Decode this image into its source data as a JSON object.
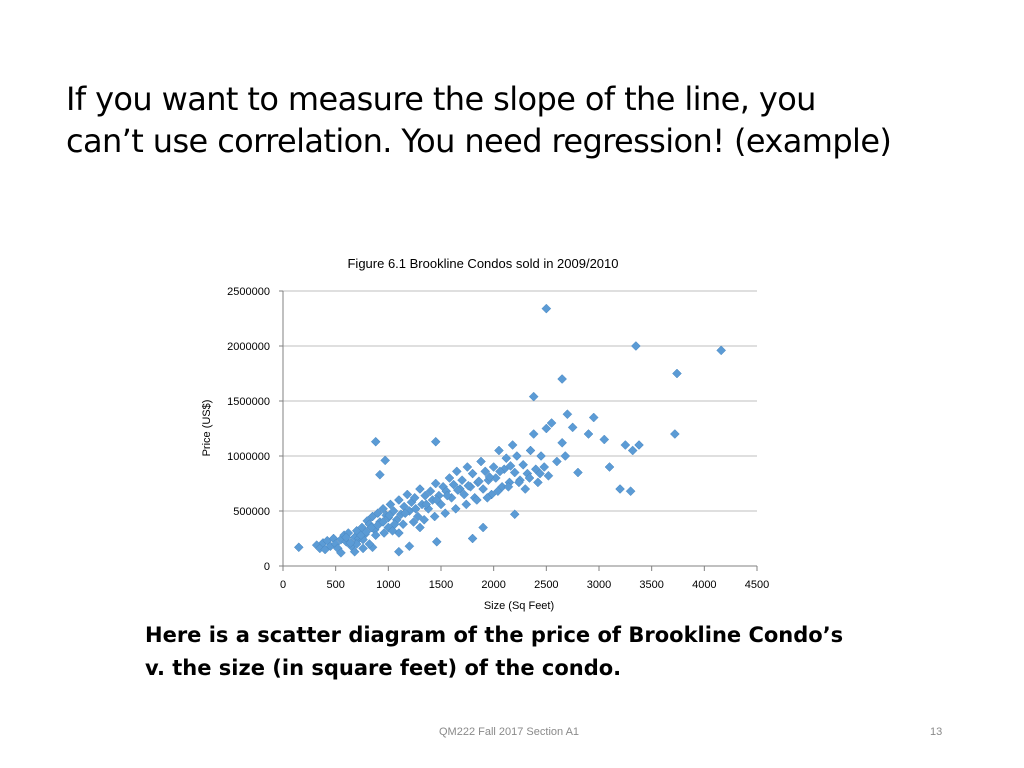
{
  "slide": {
    "title_lines": [
      "If you want to measure the slope of the line, you",
      "can’t use correlation. You need regression! (example)"
    ],
    "caption_lines": [
      "Here is a scatter diagram of the price of Brookline Condo’s",
      "v. the size (in square feet) of the condo."
    ],
    "footer": "QM222 Fall 2017 Section A1",
    "page_number": "13"
  },
  "chart_data": {
    "type": "scatter",
    "title": "Figure 6.1 Brookline Condos sold in 2009/2010",
    "xlabel": "Size (Sq Feet)",
    "ylabel": "Price (US$)",
    "xlim": [
      0,
      4500
    ],
    "ylim": [
      0,
      2500000
    ],
    "x_ticks": [
      "0",
      "500",
      "1000",
      "1500",
      "2000",
      "2500",
      "3000",
      "3500",
      "4000",
      "4500"
    ],
    "y_ticks": [
      "0",
      "500000",
      "1000000",
      "1500000",
      "2000000",
      "2500000"
    ],
    "grid": "horizontal",
    "marker": "diamond",
    "marker_color": "#5b9bd5",
    "series": [
      {
        "points": [
          [
            150,
            170000
          ],
          [
            320,
            190000
          ],
          [
            350,
            160000
          ],
          [
            380,
            210000
          ],
          [
            400,
            150000
          ],
          [
            420,
            230000
          ],
          [
            450,
            180000
          ],
          [
            480,
            250000
          ],
          [
            500,
            200000
          ],
          [
            520,
            160000
          ],
          [
            550,
            240000
          ],
          [
            580,
            280000
          ],
          [
            600,
            220000
          ],
          [
            620,
            300000
          ],
          [
            650,
            180000
          ],
          [
            680,
            260000
          ],
          [
            700,
            320000
          ],
          [
            720,
            250000
          ],
          [
            750,
            350000
          ],
          [
            780,
            290000
          ],
          [
            800,
            410000
          ],
          [
            820,
            380000
          ],
          [
            850,
            450000
          ],
          [
            870,
            330000
          ],
          [
            900,
            480000
          ],
          [
            920,
            400000
          ],
          [
            950,
            520000
          ],
          [
            980,
            460000
          ],
          [
            1000,
            350000
          ],
          [
            1020,
            560000
          ],
          [
            1050,
            500000
          ],
          [
            1080,
            420000
          ],
          [
            1100,
            600000
          ],
          [
            1120,
            470000
          ],
          [
            1150,
            540000
          ],
          [
            1180,
            650000
          ],
          [
            1200,
            500000
          ],
          [
            1220,
            580000
          ],
          [
            1250,
            620000
          ],
          [
            1280,
            450000
          ],
          [
            1300,
            700000
          ],
          [
            1320,
            560000
          ],
          [
            1350,
            640000
          ],
          [
            1380,
            520000
          ],
          [
            1400,
            680000
          ],
          [
            1420,
            600000
          ],
          [
            1450,
            750000
          ],
          [
            1480,
            640000
          ],
          [
            1500,
            560000
          ],
          [
            1520,
            720000
          ],
          [
            1550,
            680000
          ],
          [
            1580,
            800000
          ],
          [
            1600,
            620000
          ],
          [
            1620,
            740000
          ],
          [
            1650,
            860000
          ],
          [
            1680,
            700000
          ],
          [
            1700,
            780000
          ],
          [
            1720,
            650000
          ],
          [
            1750,
            900000
          ],
          [
            1780,
            720000
          ],
          [
            1800,
            840000
          ],
          [
            1820,
            620000
          ],
          [
            1850,
            760000
          ],
          [
            1880,
            950000
          ],
          [
            1900,
            700000
          ],
          [
            1920,
            860000
          ],
          [
            1950,
            780000
          ],
          [
            1980,
            650000
          ],
          [
            2000,
            900000
          ],
          [
            2020,
            800000
          ],
          [
            2050,
            1050000
          ],
          [
            2080,
            720000
          ],
          [
            2100,
            880000
          ],
          [
            2120,
            980000
          ],
          [
            2150,
            760000
          ],
          [
            2180,
            1100000
          ],
          [
            2200,
            850000
          ],
          [
            2220,
            1000000
          ],
          [
            2250,
            780000
          ],
          [
            2280,
            920000
          ],
          [
            2300,
            700000
          ],
          [
            2320,
            840000
          ],
          [
            2350,
            1050000
          ],
          [
            2380,
            1200000
          ],
          [
            2400,
            880000
          ],
          [
            2420,
            760000
          ],
          [
            2450,
            1000000
          ],
          [
            2480,
            900000
          ],
          [
            2500,
            1250000
          ],
          [
            2520,
            820000
          ],
          [
            2550,
            1300000
          ],
          [
            2600,
            950000
          ],
          [
            2650,
            1120000
          ],
          [
            2680,
            1000000
          ],
          [
            2700,
            1380000
          ],
          [
            2750,
            1260000
          ],
          [
            2800,
            850000
          ],
          [
            2900,
            1200000
          ],
          [
            2950,
            1350000
          ],
          [
            3050,
            1150000
          ],
          [
            3100,
            900000
          ],
          [
            3200,
            700000
          ],
          [
            3250,
            1100000
          ],
          [
            3300,
            680000
          ],
          [
            3320,
            1050000
          ],
          [
            3380,
            1100000
          ],
          [
            2380,
            1540000
          ],
          [
            2650,
            1700000
          ],
          [
            3350,
            2000000
          ],
          [
            3740,
            1750000
          ],
          [
            4160,
            1960000
          ],
          [
            2500,
            2340000
          ],
          [
            3720,
            1200000
          ],
          [
            880,
            1130000
          ],
          [
            920,
            830000
          ],
          [
            970,
            960000
          ],
          [
            1450,
            1130000
          ],
          [
            1460,
            220000
          ],
          [
            550,
            120000
          ],
          [
            680,
            130000
          ],
          [
            760,
            160000
          ],
          [
            850,
            170000
          ],
          [
            1100,
            130000
          ],
          [
            1200,
            180000
          ],
          [
            820,
            200000
          ],
          [
            1100,
            300000
          ],
          [
            1300,
            350000
          ],
          [
            1800,
            250000
          ],
          [
            1900,
            350000
          ],
          [
            2200,
            470000
          ],
          [
            700,
            200000
          ],
          [
            760,
            240000
          ],
          [
            880,
            280000
          ],
          [
            960,
            300000
          ],
          [
            1040,
            320000
          ],
          [
            1140,
            380000
          ],
          [
            1240,
            400000
          ],
          [
            1340,
            420000
          ],
          [
            1440,
            450000
          ],
          [
            1540,
            480000
          ],
          [
            1640,
            520000
          ],
          [
            1740,
            560000
          ],
          [
            1840,
            600000
          ],
          [
            1940,
            620000
          ],
          [
            2040,
            680000
          ],
          [
            2140,
            720000
          ],
          [
            2240,
            760000
          ],
          [
            2340,
            800000
          ],
          [
            2440,
            840000
          ],
          [
            1000,
            440000
          ],
          [
            1060,
            380000
          ],
          [
            1160,
            480000
          ],
          [
            1260,
            520000
          ],
          [
            1360,
            560000
          ],
          [
            1460,
            600000
          ],
          [
            1560,
            640000
          ],
          [
            1660,
            690000
          ],
          [
            1760,
            730000
          ],
          [
            1860,
            770000
          ],
          [
            1960,
            810000
          ],
          [
            2060,
            860000
          ],
          [
            2160,
            910000
          ],
          [
            600,
            260000
          ],
          [
            640,
            210000
          ],
          [
            740,
            280000
          ],
          [
            790,
            310000
          ],
          [
            840,
            350000
          ],
          [
            900,
            370000
          ],
          [
            950,
            400000
          ],
          [
            1010,
            460000
          ]
        ]
      }
    ]
  }
}
